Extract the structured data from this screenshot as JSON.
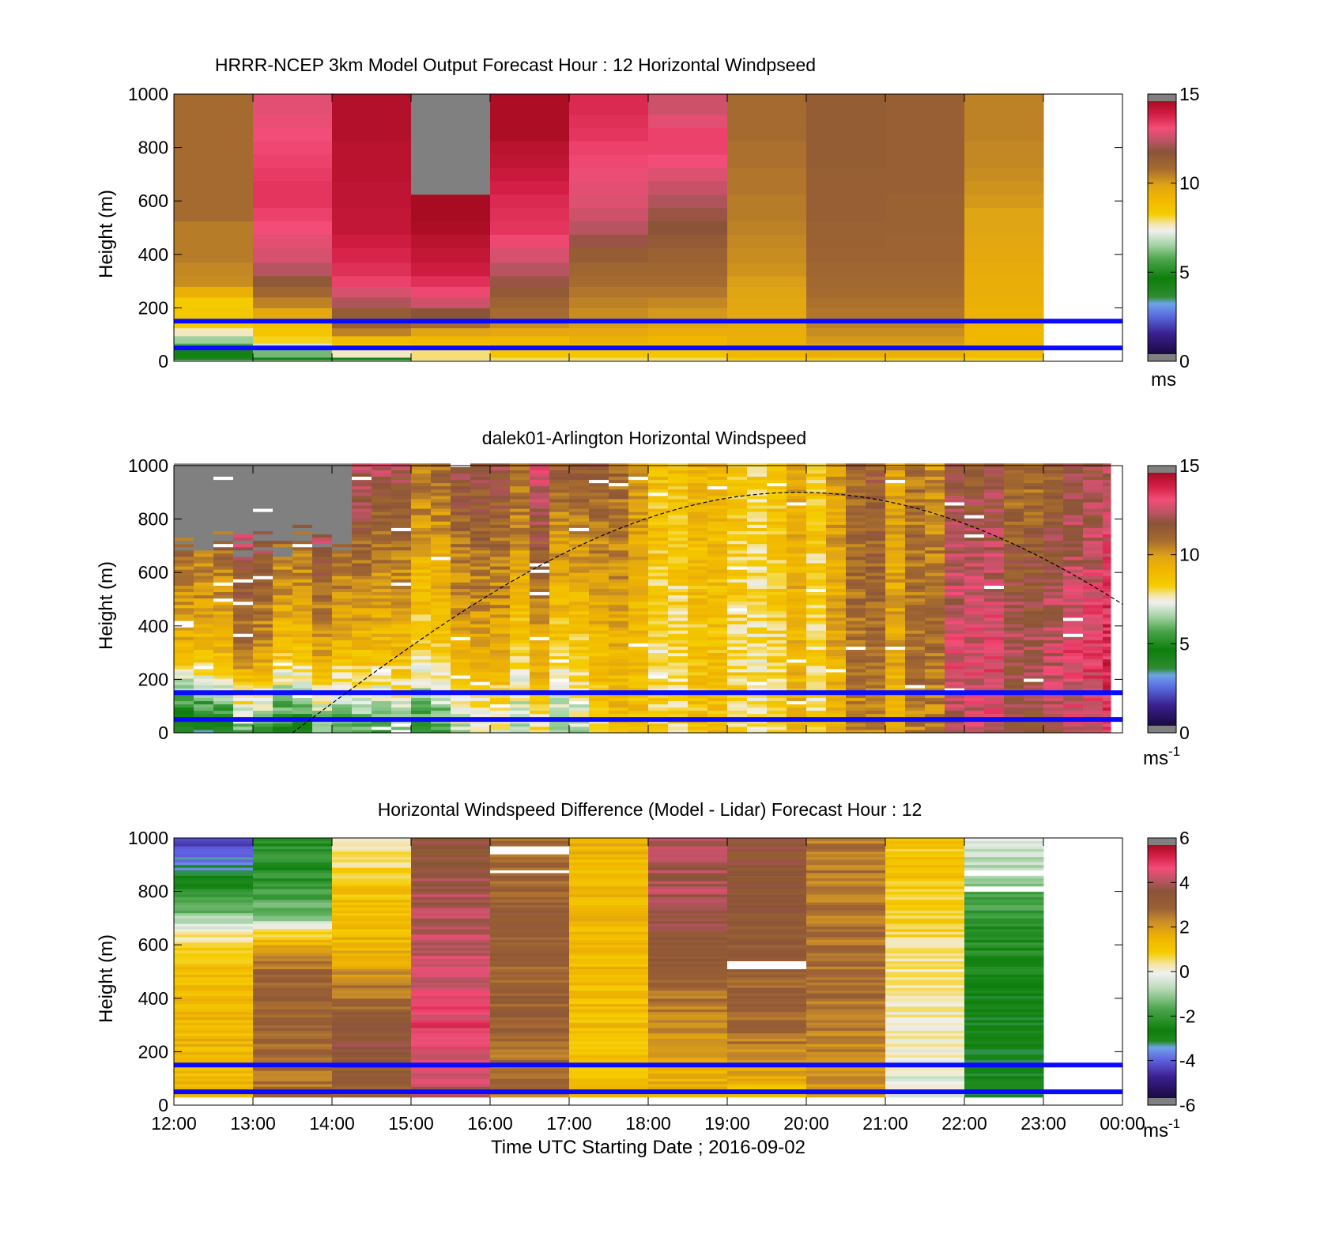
{
  "chart_data": [
    {
      "type": "heatmap",
      "title": "HRRR-NCEP 3km Model Output   Forecast Hour : 12 Horizontal Windpseed",
      "xlabel": "",
      "ylabel": "Height (m)",
      "ylim": [
        0,
        1000
      ],
      "yticks": [
        "0",
        "200",
        "400",
        "600",
        "800",
        "1000"
      ],
      "xlim_hours": [
        12,
        24
      ],
      "colorbar": {
        "label": "ms",
        "label_sup": "",
        "range": [
          0,
          15
        ],
        "ticks": [
          "0",
          "5",
          "10",
          "15"
        ],
        "palette": "wind"
      },
      "blue_lines_m": [
        150,
        50
      ],
      "row_heights_m": [
        0,
        30,
        55,
        80,
        110,
        140,
        180,
        220,
        260,
        300,
        340,
        400,
        450,
        500,
        550,
        600,
        650,
        700,
        750,
        800,
        850,
        900,
        950,
        1000
      ],
      "hours": [
        12,
        13,
        14,
        15,
        16,
        17,
        18,
        19,
        20,
        21,
        22
      ],
      "values": [
        [
          4.0,
          4.2,
          5.6,
          6.4,
          7.6,
          8.3,
          8.5,
          8.4,
          9.5,
          10.4,
          10.5,
          10.7,
          10.7,
          10.7,
          11.0,
          11.0,
          11.0,
          11.0,
          11.0,
          11.0,
          11.0,
          11.0,
          11.0,
          11.0
        ],
        [
          4.2,
          6.0,
          7.0,
          8.2,
          8.6,
          8.8,
          9.8,
          10.6,
          11.2,
          11.8,
          12.6,
          13.0,
          13.2,
          13.4,
          13.6,
          13.8,
          13.8,
          13.7,
          13.6,
          13.5,
          13.4,
          13.3,
          13.2,
          13.2
        ],
        [
          4.0,
          7.6,
          8.4,
          9.0,
          10.6,
          11.5,
          11.6,
          12.5,
          13.0,
          13.6,
          13.9,
          14.1,
          14.3,
          14.5,
          14.5,
          14.6,
          14.6,
          14.7,
          14.7,
          14.7,
          14.8,
          14.8,
          14.8,
          14.8
        ],
        [
          7.9,
          7.9,
          8.6,
          9.1,
          10.0,
          11.0,
          12.0,
          12.9,
          13.5,
          13.9,
          14.3,
          14.5,
          14.7,
          14.9,
          15.0,
          15.0,
          15.0,
          15.5,
          15.5,
          15.5,
          15.5,
          15.5,
          15.5,
          15.5
        ],
        [
          8.0,
          8.6,
          9.0,
          9.1,
          9.8,
          10.4,
          11.0,
          11.3,
          11.7,
          12.2,
          12.6,
          13.0,
          13.5,
          13.8,
          13.9,
          14.0,
          14.2,
          14.4,
          14.6,
          14.7,
          14.9,
          14.9,
          14.9,
          14.9
        ],
        [
          8.0,
          8.6,
          9.0,
          9.5,
          9.8,
          10.1,
          10.4,
          10.6,
          10.8,
          11.0,
          11.2,
          11.6,
          12.2,
          12.6,
          12.9,
          13.1,
          13.2,
          13.3,
          13.5,
          13.6,
          13.8,
          13.9,
          14.0,
          14.0
        ],
        [
          8.0,
          8.6,
          9.0,
          9.2,
          9.6,
          9.9,
          10.2,
          10.5,
          10.8,
          11.0,
          11.2,
          11.4,
          11.7,
          12.0,
          12.2,
          12.5,
          12.8,
          13.1,
          13.4,
          13.6,
          13.6,
          13.2,
          12.9,
          12.9
        ],
        [
          8.5,
          9.2,
          9.4,
          9.5,
          9.6,
          9.7,
          9.8,
          9.9,
          10.0,
          10.1,
          10.3,
          10.4,
          10.5,
          10.6,
          10.7,
          10.7,
          10.8,
          10.8,
          10.9,
          10.9,
          11.0,
          11.0,
          11.0,
          11.0
        ],
        [
          8.5,
          9.5,
          10.0,
          10.2,
          10.4,
          10.6,
          10.8,
          10.9,
          11.0,
          11.1,
          11.2,
          11.3,
          11.4,
          11.4,
          11.5,
          11.5,
          11.5,
          11.5,
          11.6,
          11.6,
          11.6,
          11.6,
          11.6,
          11.6
        ],
        [
          8.5,
          9.5,
          10.0,
          10.2,
          10.4,
          10.6,
          10.8,
          10.9,
          11.0,
          11.1,
          11.2,
          11.3,
          11.3,
          11.4,
          11.4,
          11.4,
          11.5,
          11.5,
          11.5,
          11.5,
          11.5,
          11.5,
          11.5,
          11.5
        ],
        [
          8.3,
          9.0,
          9.1,
          9.2,
          9.2,
          9.3,
          9.4,
          9.5,
          9.6,
          9.6,
          9.7,
          9.8,
          9.9,
          10.0,
          10.0,
          10.2,
          10.3,
          10.4,
          10.5,
          10.5,
          10.6,
          10.6,
          10.6,
          10.6
        ]
      ],
      "missing": [
        {
          "hour": 15,
          "from_m": 650,
          "to_m": 1000
        }
      ]
    },
    {
      "type": "heatmap",
      "title": "dalek01-Arlington  Horizontal Windspeed",
      "xlabel": "",
      "ylabel": "Height (m)",
      "ylim": [
        0,
        1000
      ],
      "yticks": [
        "0",
        "200",
        "400",
        "600",
        "800",
        "1000"
      ],
      "xlim_hours": [
        12,
        24
      ],
      "colorbar": {
        "label": "ms",
        "label_sup": "-1",
        "range": [
          0,
          15
        ],
        "ticks": [
          "0",
          "5",
          "10",
          "15"
        ],
        "palette": "wind"
      },
      "blue_lines_m": [
        150,
        50
      ],
      "hour_range": [
        12,
        23.85
      ],
      "nighttime_curve": true,
      "profiles": [
        {
          "hour": 12.0,
          "surf": 4.0,
          "mid": 10.5,
          "top": 13.6
        },
        {
          "hour": 13.0,
          "surf": 5.0,
          "mid": 9.5,
          "top": 13.0
        },
        {
          "hour": 14.0,
          "surf": 5.0,
          "mid": 9.0,
          "top": 13.5
        },
        {
          "hour": 15.0,
          "surf": 5.5,
          "mid": 8.5,
          "top": 11.5
        },
        {
          "hour": 16.0,
          "surf": 6.5,
          "mid": 9.0,
          "top": 11.5
        },
        {
          "hour": 17.0,
          "surf": 7.5,
          "mid": 9.2,
          "top": 12.8
        },
        {
          "hour": 18.0,
          "surf": 8.5,
          "mid": 8.2,
          "top": 9.2
        },
        {
          "hour": 19.0,
          "surf": 8.0,
          "mid": 7.8,
          "top": 8.3
        },
        {
          "hour": 20.0,
          "surf": 9.0,
          "mid": 9.0,
          "top": 9.3
        },
        {
          "hour": 21.0,
          "surf": 10.0,
          "mid": 10.6,
          "top": 11.0
        },
        {
          "hour": 22.0,
          "surf": 12.5,
          "mid": 13.0,
          "top": 11.5
        },
        {
          "hour": 23.0,
          "surf": 13.0,
          "mid": 13.5,
          "top": 12.0
        },
        {
          "hour": 24.0,
          "surf": 13.0,
          "mid": 13.5,
          "top": 12.0
        }
      ]
    },
    {
      "type": "heatmap",
      "title": "Horizontal Windspeed Difference (Model - Lidar) Forecast Hour : 12",
      "xlabel": "Time UTC  Starting Date ; 2016-09-02",
      "ylabel": "Height (m)",
      "ylim": [
        0,
        1000
      ],
      "yticks": [
        "0",
        "200",
        "400",
        "600",
        "800",
        "1000"
      ],
      "xticks": [
        "12:00",
        "13:00",
        "14:00",
        "15:00",
        "16:00",
        "17:00",
        "18:00",
        "19:00",
        "20:00",
        "21:00",
        "22:00",
        "23:00",
        "00:00"
      ],
      "xlim_hours": [
        12,
        24
      ],
      "colorbar": {
        "label": "ms",
        "label_sup": "-1",
        "range": [
          -6,
          6
        ],
        "ticks": [
          "-6",
          "-4",
          "-2",
          "0",
          "2",
          "4",
          "6"
        ],
        "palette": "diff"
      },
      "blue_lines_m": [
        150,
        50
      ],
      "columns": [
        {
          "hour": 12,
          "profile": [
            [
              0,
              1.2
            ],
            [
              200,
              1.5
            ],
            [
              500,
              1.3
            ],
            [
              600,
              0.8
            ],
            [
              650,
              0.0
            ],
            [
              700,
              -1.0
            ],
            [
              780,
              -2.0
            ],
            [
              850,
              -3.0
            ],
            [
              900,
              -3.6
            ],
            [
              960,
              -4.2
            ],
            [
              1000,
              -4.5
            ]
          ]
        },
        {
          "hour": 13,
          "profile": [
            [
              0,
              2.5
            ],
            [
              300,
              3.2
            ],
            [
              500,
              3.0
            ],
            [
              600,
              1.8
            ],
            [
              650,
              0.4
            ],
            [
              700,
              -1.3
            ],
            [
              850,
              -2.3
            ],
            [
              1000,
              -2.4
            ]
          ]
        },
        {
          "hour": 14,
          "profile": [
            [
              0,
              2.8
            ],
            [
              250,
              3.8
            ],
            [
              450,
              2.5
            ],
            [
              600,
              1.5
            ],
            [
              800,
              1.2
            ],
            [
              900,
              0.6
            ],
            [
              1000,
              0.3
            ]
          ]
        },
        {
          "hour": 15,
          "profile": [
            [
              0,
              4.2
            ],
            [
              300,
              5.0
            ],
            [
              500,
              4.5
            ],
            [
              700,
              4.2
            ],
            [
              850,
              4.0
            ],
            [
              1000,
              3.6
            ]
          ]
        },
        {
          "hour": 16,
          "profile": [
            [
              0,
              2.6
            ],
            [
              400,
              3.2
            ],
            [
              800,
              3.0
            ],
            [
              1000,
              3.0
            ]
          ]
        },
        {
          "hour": 17,
          "profile": [
            [
              0,
              1.2
            ],
            [
              1000,
              1.5
            ]
          ]
        },
        {
          "hour": 18,
          "profile": [
            [
              0,
              1.5
            ],
            [
              300,
              2.3
            ],
            [
              600,
              3.5
            ],
            [
              800,
              4.2
            ],
            [
              1000,
              4.3
            ]
          ]
        },
        {
          "hour": 19,
          "profile": [
            [
              0,
              1.0
            ],
            [
              300,
              3.0
            ],
            [
              600,
              3.3
            ],
            [
              800,
              3.6
            ],
            [
              1000,
              3.6
            ]
          ]
        },
        {
          "hour": 20,
          "profile": [
            [
              0,
              2.0
            ],
            [
              400,
              2.8
            ],
            [
              1000,
              2.6
            ]
          ]
        },
        {
          "hour": 21,
          "profile": [
            [
              0,
              -0.5
            ],
            [
              200,
              0.0
            ],
            [
              500,
              0.3
            ],
            [
              700,
              0.8
            ],
            [
              900,
              1.2
            ],
            [
              1000,
              1.0
            ]
          ]
        },
        {
          "hour": 22,
          "profile": [
            [
              0,
              -3.0
            ],
            [
              300,
              -3.1
            ],
            [
              600,
              -2.5
            ],
            [
              800,
              -1.6
            ],
            [
              900,
              -0.8
            ],
            [
              1000,
              -0.5
            ]
          ]
        }
      ],
      "gaps": [
        {
          "hour": 16,
          "from_m": 945,
          "to_m": 965
        },
        {
          "hour": 16,
          "from_m": 870,
          "to_m": 880
        },
        {
          "hour": 19,
          "from_m": 515,
          "to_m": 535
        },
        {
          "hour": 22,
          "from_m": 860,
          "to_m": 880
        },
        {
          "hour": 22,
          "from_m": 805,
          "to_m": 815
        }
      ]
    }
  ]
}
